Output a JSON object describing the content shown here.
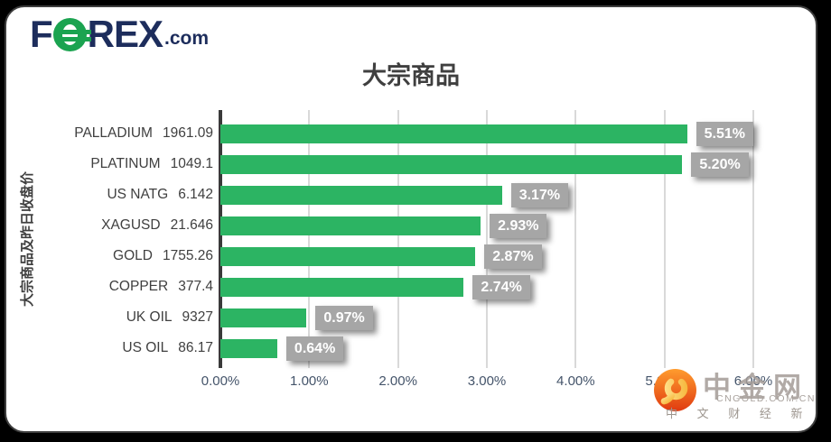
{
  "page": {
    "background": "#000000",
    "card_background": "#ffffff",
    "card_border": "#3e3e3e"
  },
  "logo": {
    "text_f": "F",
    "text_rex": "REX",
    "text_com": ".com",
    "navy": "#1d2d5c",
    "green": "#1ba350"
  },
  "chart_data": {
    "type": "bar",
    "orientation": "horizontal",
    "title": "大宗商品",
    "ylabel": "大宗商品及昨日收盘价",
    "xlabel": "",
    "xlim": [
      0,
      6
    ],
    "x_ticks": [
      "0.00%",
      "1.00%",
      "2.00%",
      "3.00%",
      "4.00%",
      "5.00%",
      "6.00%"
    ],
    "grid": true,
    "bar_color": "#2cb463",
    "axis_line_color": "#3a3a3a",
    "gridline_color": "#d9d9d9",
    "label_box_color": "#a6a6a6",
    "label_text_color": "#ffffff",
    "categories": [
      "PALLADIUM",
      "PLATINUM",
      "US NATG",
      "XAGUSD",
      "GOLD",
      "COPPER",
      "UK OIL",
      "US OIL"
    ],
    "values": [
      5.51,
      5.2,
      3.17,
      2.93,
      2.87,
      2.74,
      0.97,
      0.64
    ],
    "items": [
      {
        "name": "PALLADIUM",
        "close": "1961.09",
        "change_pct": 5.51,
        "change_label": "5.51%"
      },
      {
        "name": "PLATINUM",
        "close": "1049.1",
        "change_pct": 5.2,
        "change_label": "5.20%"
      },
      {
        "name": "US NATG",
        "close": "6.142",
        "change_pct": 3.17,
        "change_label": "3.17%"
      },
      {
        "name": "XAGUSD",
        "close": "21.646",
        "change_pct": 2.93,
        "change_label": "2.93%"
      },
      {
        "name": "GOLD",
        "close": "1755.26",
        "change_pct": 2.87,
        "change_label": "2.87%"
      },
      {
        "name": "COPPER",
        "close": "377.4",
        "change_pct": 2.74,
        "change_label": "2.74%"
      },
      {
        "name": "UK OIL",
        "close": "9327",
        "change_pct": 0.97,
        "change_label": "0.97%"
      },
      {
        "name": "US OIL",
        "close": "86.17",
        "change_pct": 0.64,
        "change_label": "0.64%"
      }
    ]
  },
  "watermark": {
    "brand": "中金网",
    "domain": "CNGOLD.COM.CN",
    "tagline": "中 文 财 经 新 媒 体",
    "logo_colors": {
      "circle_top": "#ff9c2e",
      "circle_bottom": "#e03a10",
      "swirl": "#ffd24a"
    }
  }
}
